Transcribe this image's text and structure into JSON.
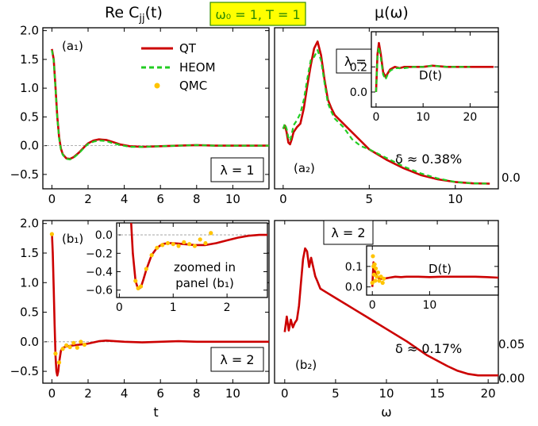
{
  "titles": {
    "left": "Re Cⱼⱼ(t)",
    "left_main": "Re C",
    "left_sub": "jj",
    "left_arg": "(t)",
    "right": "μ(ω)",
    "params": "ω₀ = 1, T = 1",
    "params_bg": "#ffff00",
    "params_fg": "#2e8b00"
  },
  "legend": {
    "qt": "QT",
    "heom": "HEOM",
    "qmc": "QMC"
  },
  "colors": {
    "qt": "#cc0000",
    "heom": "#22cc22",
    "qmc": "#ffc400"
  },
  "chart_data": [
    {
      "id": "a1",
      "type": "line",
      "panel_label": "(a₁)",
      "lambda_label": "λ = 1",
      "xlabel": "",
      "xlim": [
        -0.5,
        12
      ],
      "ylim": [
        -0.75,
        2.05
      ],
      "xticks": [
        "0",
        "2",
        "4",
        "6",
        "8",
        "10"
      ],
      "xtick_values": [
        0,
        2,
        4,
        6,
        8,
        10
      ],
      "yticks": [
        "−0.5",
        "0.0",
        "0.5",
        "1.0",
        "1.5",
        "2.0"
      ],
      "ytick_values": [
        -0.5,
        0,
        0.5,
        1,
        1.5,
        2
      ],
      "series": [
        {
          "name": "QT",
          "x": [
            0,
            0.1,
            0.2,
            0.3,
            0.4,
            0.5,
            0.6,
            0.8,
            1.0,
            1.2,
            1.5,
            1.8,
            2.0,
            2.3,
            2.6,
            3.0,
            3.4,
            3.8,
            4.3,
            5,
            6,
            7,
            8,
            9,
            10,
            11,
            12
          ],
          "y": [
            1.68,
            1.5,
            1.0,
            0.5,
            0.15,
            -0.05,
            -0.15,
            -0.22,
            -0.23,
            -0.2,
            -0.12,
            -0.02,
            0.04,
            0.09,
            0.11,
            0.1,
            0.06,
            0.02,
            -0.01,
            -0.02,
            -0.01,
            0.0,
            0.01,
            0.0,
            0.0,
            0.0,
            0.0
          ]
        },
        {
          "name": "HEOM",
          "x": [
            0,
            0.1,
            0.2,
            0.3,
            0.4,
            0.5,
            0.6,
            0.8,
            1.0,
            1.2,
            1.5,
            1.8,
            2.0,
            2.3,
            2.6,
            3.0,
            3.4,
            3.8,
            4.3,
            5,
            6,
            7,
            8,
            9,
            10,
            11,
            12
          ],
          "y": [
            1.66,
            1.48,
            0.98,
            0.48,
            0.13,
            -0.07,
            -0.16,
            -0.23,
            -0.24,
            -0.21,
            -0.13,
            -0.03,
            0.03,
            0.07,
            0.09,
            0.08,
            0.04,
            0.01,
            -0.02,
            -0.02,
            -0.01,
            0.0,
            0.01,
            0.0,
            0.0,
            0.0,
            0.0
          ]
        }
      ]
    },
    {
      "id": "a2",
      "type": "line",
      "panel_label": "(a₂)",
      "lambda_label": "λ = 1",
      "delta_label": "δ ≈ 0.38%",
      "xlabel": "",
      "xlim": [
        -0.5,
        12.5
      ],
      "ylim": [
        -0.02,
        0.92
      ],
      "xticks": [
        "0",
        "5",
        "10"
      ],
      "xtick_values": [
        0,
        5,
        10
      ],
      "yticks": [
        "0.0"
      ],
      "ytick_values": [
        0
      ],
      "series": [
        {
          "name": "QT",
          "x": [
            0,
            0.1,
            0.2,
            0.3,
            0.4,
            0.5,
            0.6,
            0.8,
            1.0,
            1.2,
            1.4,
            1.6,
            1.8,
            2.0,
            2.2,
            2.4,
            2.6,
            2.8,
            3.0,
            3.5,
            4.0,
            4.5,
            5,
            6,
            7,
            8,
            9,
            10,
            11,
            12
          ],
          "y": [
            0.33,
            0.35,
            0.31,
            0.25,
            0.24,
            0.27,
            0.31,
            0.34,
            0.36,
            0.45,
            0.58,
            0.7,
            0.8,
            0.84,
            0.76,
            0.62,
            0.5,
            0.45,
            0.41,
            0.36,
            0.31,
            0.26,
            0.21,
            0.15,
            0.1,
            0.06,
            0.035,
            0.02,
            0.012,
            0.01
          ]
        },
        {
          "name": "HEOM",
          "x": [
            0,
            0.1,
            0.2,
            0.3,
            0.4,
            0.5,
            0.6,
            0.8,
            1.0,
            1.2,
            1.4,
            1.6,
            1.8,
            2.0,
            2.2,
            2.4,
            2.6,
            2.8,
            3.0,
            3.5,
            4.0,
            4.5,
            5,
            6,
            7,
            8,
            9,
            10,
            11,
            12
          ],
          "y": [
            0.33,
            0.36,
            0.33,
            0.28,
            0.26,
            0.3,
            0.35,
            0.38,
            0.42,
            0.5,
            0.62,
            0.73,
            0.75,
            0.79,
            0.73,
            0.6,
            0.48,
            0.43,
            0.39,
            0.34,
            0.27,
            0.23,
            0.21,
            0.16,
            0.11,
            0.07,
            0.04,
            0.02,
            0.012,
            0.01
          ]
        }
      ]
    },
    {
      "id": "a2_inset",
      "type": "line",
      "title": "D(t)",
      "xlim": [
        -1,
        26
      ],
      "ylim": [
        -0.12,
        0.48
      ],
      "xticks": [
        "0",
        "10",
        "20"
      ],
      "xtick_values": [
        0,
        10,
        20
      ],
      "yticks": [
        "0.0",
        "0.2"
      ],
      "ytick_values": [
        0,
        0.2
      ],
      "series": [
        {
          "name": "QT",
          "x": [
            0,
            0.3,
            0.6,
            1.0,
            1.5,
            2.0,
            2.5,
            3,
            4,
            5,
            6,
            8,
            10,
            12,
            15,
            18,
            21,
            25
          ],
          "y": [
            0.0,
            0.3,
            0.39,
            0.3,
            0.16,
            0.12,
            0.15,
            0.18,
            0.2,
            0.19,
            0.2,
            0.2,
            0.2,
            0.21,
            0.2,
            0.2,
            0.2,
            0.2
          ]
        },
        {
          "name": "HEOM",
          "x": [
            0,
            0.3,
            0.6,
            1.0,
            1.5,
            2.0,
            2.5,
            3,
            4,
            5,
            6,
            8,
            10,
            12,
            15,
            18,
            20
          ],
          "y": [
            0.0,
            0.28,
            0.36,
            0.27,
            0.14,
            0.1,
            0.14,
            0.17,
            0.19,
            0.19,
            0.19,
            0.2,
            0.2,
            0.21,
            0.2,
            0.2,
            0.2
          ]
        }
      ]
    },
    {
      "id": "b1",
      "type": "line",
      "panel_label": "(b₁)",
      "lambda_label": "λ = 2",
      "xlabel": "t",
      "xlim": [
        -0.5,
        12
      ],
      "ylim": [
        -0.7,
        2.05
      ],
      "xticks": [
        "0",
        "2",
        "4",
        "6",
        "8",
        "10"
      ],
      "xtick_values": [
        0,
        2,
        4,
        6,
        8,
        10
      ],
      "yticks": [
        "−0.5",
        "0.0",
        "0.5",
        "1.0",
        "1.5",
        "2.0"
      ],
      "ytick_values": [
        -0.5,
        0,
        0.5,
        1,
        1.5,
        2
      ],
      "series": [
        {
          "name": "QT",
          "x": [
            0,
            0.05,
            0.1,
            0.15,
            0.2,
            0.25,
            0.3,
            0.35,
            0.4,
            0.5,
            0.6,
            0.8,
            1.0,
            1.2,
            1.5,
            1.8,
            2.0,
            2.3,
            2.6,
            3,
            4,
            5,
            6,
            7,
            8,
            9,
            10,
            11,
            12
          ],
          "y": [
            1.85,
            1.5,
            0.9,
            0.3,
            -0.25,
            -0.5,
            -0.57,
            -0.5,
            -0.35,
            -0.15,
            -0.1,
            -0.08,
            -0.07,
            -0.06,
            -0.05,
            -0.04,
            -0.03,
            -0.01,
            0.01,
            0.02,
            0.0,
            -0.01,
            0.0,
            0.01,
            0.0,
            0.0,
            0.0,
            0.0,
            0.0
          ]
        },
        {
          "name": "QMC",
          "x": [
            0,
            0.2,
            0.4,
            0.6,
            0.8,
            1.0,
            1.2,
            1.4,
            1.6,
            1.8
          ],
          "y": [
            1.82,
            -0.2,
            -0.35,
            -0.12,
            -0.06,
            -0.09,
            -0.02,
            -0.1,
            0.0,
            -0.05
          ]
        }
      ]
    },
    {
      "id": "b1_inset",
      "type": "line",
      "inset_note": [
        "zoomed in",
        "panel (b₁)"
      ],
      "xlim": [
        -0.05,
        2.75
      ],
      "ylim": [
        -0.68,
        0.13
      ],
      "xticks": [
        "0",
        "1",
        "2"
      ],
      "xtick_values": [
        0,
        1,
        2
      ],
      "yticks": [
        "−0.6",
        "−0.4",
        "−0.2",
        "0.0"
      ],
      "ytick_values": [
        -0.6,
        -0.4,
        -0.2,
        0
      ],
      "series": [
        {
          "name": "QT",
          "x": [
            0.22,
            0.25,
            0.3,
            0.35,
            0.4,
            0.45,
            0.5,
            0.6,
            0.7,
            0.8,
            0.9,
            1.0,
            1.2,
            1.4,
            1.6,
            1.8,
            2.0,
            2.2,
            2.4,
            2.6,
            2.75
          ],
          "y": [
            0.13,
            -0.2,
            -0.5,
            -0.59,
            -0.57,
            -0.48,
            -0.38,
            -0.22,
            -0.14,
            -0.1,
            -0.09,
            -0.09,
            -0.1,
            -0.11,
            -0.11,
            -0.09,
            -0.06,
            -0.03,
            -0.01,
            0.0,
            0.0
          ]
        },
        {
          "name": "QMC",
          "x": [
            0.3,
            0.35,
            0.4,
            0.5,
            0.6,
            0.7,
            0.8,
            0.9,
            1.0,
            1.1,
            1.2,
            1.3,
            1.4,
            1.5,
            1.6,
            1.7
          ],
          "y": [
            -0.5,
            -0.58,
            -0.56,
            -0.37,
            -0.22,
            -0.14,
            -0.11,
            -0.09,
            -0.1,
            -0.12,
            -0.08,
            -0.1,
            -0.12,
            -0.05,
            -0.09,
            0.02
          ]
        }
      ]
    },
    {
      "id": "b2",
      "type": "line",
      "panel_label": "(b₂)",
      "lambda_label": "λ = 2",
      "delta_label": "δ ≈ 0.17%",
      "xlabel": "ω",
      "xlim": [
        -1,
        21
      ],
      "ylim": [
        -0.005,
        0.1
      ],
      "xticks": [
        "0",
        "5",
        "10",
        "15",
        "20"
      ],
      "xtick_values": [
        0,
        5,
        10,
        15,
        20
      ],
      "yticks": [
        "0.00",
        "0.05"
      ],
      "ytick_values": [
        0,
        0.05
      ],
      "series": [
        {
          "name": "QT",
          "x": [
            0,
            0.2,
            0.4,
            0.6,
            0.8,
            1.0,
            1.2,
            1.4,
            1.6,
            1.8,
            2.0,
            2.2,
            2.4,
            2.6,
            2.8,
            3.0,
            3.2,
            3.5,
            4.0,
            5,
            6,
            7,
            8,
            9,
            10,
            12,
            14,
            16,
            17,
            18,
            19,
            20,
            21
          ],
          "y": [
            0.028,
            0.038,
            0.029,
            0.036,
            0.031,
            0.034,
            0.036,
            0.045,
            0.06,
            0.075,
            0.082,
            0.08,
            0.07,
            0.076,
            0.07,
            0.064,
            0.061,
            0.056,
            0.054,
            0.05,
            0.046,
            0.042,
            0.038,
            0.034,
            0.03,
            0.022,
            0.013,
            0.006,
            0.003,
            0.001,
            0.0,
            0.0,
            0.0
          ]
        }
      ]
    },
    {
      "id": "b2_inset",
      "type": "line",
      "title": "D(t)",
      "xlim": [
        -1,
        22
      ],
      "ylim": [
        -0.04,
        0.2
      ],
      "xticks": [
        "0",
        "10"
      ],
      "xtick_values": [
        0,
        10
      ],
      "yticks": [
        "0.0",
        "0.1"
      ],
      "ytick_values": [
        0,
        0.1
      ],
      "series": [
        {
          "name": "QT",
          "x": [
            0,
            0.2,
            0.4,
            0.6,
            0.8,
            1.0,
            1.5,
            2,
            3,
            4,
            5,
            6,
            8,
            10,
            12,
            15,
            18,
            20,
            22
          ],
          "y": [
            0.0,
            0.12,
            0.08,
            0.06,
            0.05,
            0.045,
            0.04,
            0.04,
            0.045,
            0.05,
            0.048,
            0.05,
            0.05,
            0.048,
            0.05,
            0.05,
            0.05,
            0.048,
            0.045
          ]
        },
        {
          "name": "QMC",
          "x": [
            0,
            0.1,
            0.2,
            0.3,
            0.4,
            0.5,
            0.6,
            0.8,
            1.0,
            1.2,
            1.5,
            1.8,
            2.0
          ],
          "y": [
            0.02,
            0.15,
            0.1,
            0.06,
            0.11,
            0.03,
            0.09,
            0.05,
            0.07,
            0.03,
            0.05,
            0.02,
            0.04
          ]
        }
      ]
    }
  ]
}
